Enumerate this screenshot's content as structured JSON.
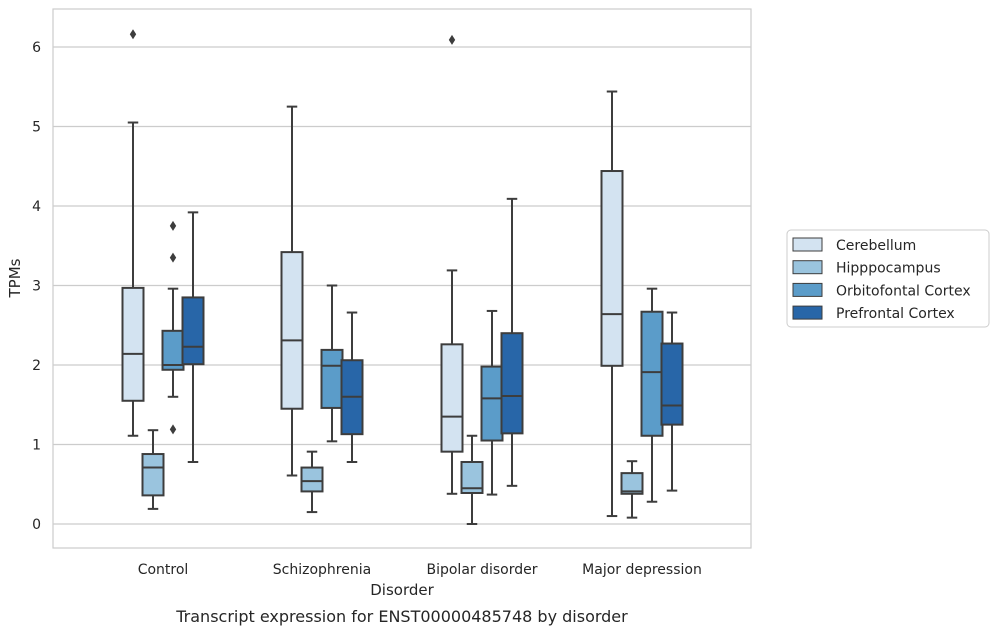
{
  "chart_data": {
    "type": "box",
    "title": "",
    "caption": "Transcript expression for ENST00000485748 by disorder",
    "xlabel": "Disorder",
    "ylabel": "TPMs",
    "ylim": [
      -0.3,
      6.5
    ],
    "yticks": [
      "0",
      "1",
      "2",
      "3",
      "4",
      "5",
      "6"
    ],
    "grid": "horizontal",
    "legend_position": "right",
    "categories": [
      "Control",
      "Schizophrenia",
      "Bipolar disorder",
      "Major depression"
    ],
    "series": [
      {
        "name": "Cerebellum",
        "color": "#d3e3f1",
        "boxes": [
          {
            "whisker_low": 1.11,
            "q1": 1.55,
            "median": 2.14,
            "q3": 2.97,
            "whisker_high": 5.05,
            "outliers": [
              6.16
            ]
          },
          {
            "whisker_low": 0.61,
            "q1": 1.45,
            "median": 2.31,
            "q3": 3.42,
            "whisker_high": 5.25,
            "outliers": []
          },
          {
            "whisker_low": 0.38,
            "q1": 0.91,
            "median": 1.35,
            "q3": 2.26,
            "whisker_high": 3.19,
            "outliers": [
              6.09
            ]
          },
          {
            "whisker_low": 0.1,
            "q1": 1.99,
            "median": 2.64,
            "q3": 4.44,
            "whisker_high": 5.44,
            "outliers": []
          }
        ]
      },
      {
        "name": "Hipppocampus",
        "color": "#9ac4de",
        "boxes": [
          {
            "whisker_low": 0.19,
            "q1": 0.36,
            "median": 0.71,
            "q3": 0.88,
            "whisker_high": 1.18,
            "outliers": []
          },
          {
            "whisker_low": 0.15,
            "q1": 0.41,
            "median": 0.54,
            "q3": 0.71,
            "whisker_high": 0.91,
            "outliers": []
          },
          {
            "whisker_low": 0.0,
            "q1": 0.39,
            "median": 0.45,
            "q3": 0.78,
            "whisker_high": 1.11,
            "outliers": []
          },
          {
            "whisker_low": 0.08,
            "q1": 0.38,
            "median": 0.41,
            "q3": 0.64,
            "whisker_high": 0.79,
            "outliers": []
          }
        ]
      },
      {
        "name": "Orbitofontal Cortex",
        "color": "#5b9cc9",
        "boxes": [
          {
            "whisker_low": 1.6,
            "q1": 1.94,
            "median": 2.0,
            "q3": 2.43,
            "whisker_high": 2.96,
            "outliers": [
              3.75,
              3.35,
              1.19
            ]
          },
          {
            "whisker_low": 1.04,
            "q1": 1.46,
            "median": 1.99,
            "q3": 2.19,
            "whisker_high": 3.0,
            "outliers": []
          },
          {
            "whisker_low": 0.37,
            "q1": 1.05,
            "median": 1.58,
            "q3": 1.98,
            "whisker_high": 2.68,
            "outliers": []
          },
          {
            "whisker_low": 0.28,
            "q1": 1.11,
            "median": 1.91,
            "q3": 2.67,
            "whisker_high": 2.96,
            "outliers": []
          }
        ]
      },
      {
        "name": "Prefrontal Cortex",
        "color": "#2866a8",
        "boxes": [
          {
            "whisker_low": 0.78,
            "q1": 2.01,
            "median": 2.23,
            "q3": 2.85,
            "whisker_high": 3.92,
            "outliers": []
          },
          {
            "whisker_low": 0.78,
            "q1": 1.13,
            "median": 1.6,
            "q3": 2.06,
            "whisker_high": 2.66,
            "outliers": []
          },
          {
            "whisker_low": 0.48,
            "q1": 1.14,
            "median": 1.61,
            "q3": 2.4,
            "whisker_high": 4.09,
            "outliers": []
          },
          {
            "whisker_low": 0.42,
            "q1": 1.25,
            "median": 1.49,
            "q3": 2.27,
            "whisker_high": 2.66,
            "outliers": []
          }
        ]
      }
    ]
  }
}
